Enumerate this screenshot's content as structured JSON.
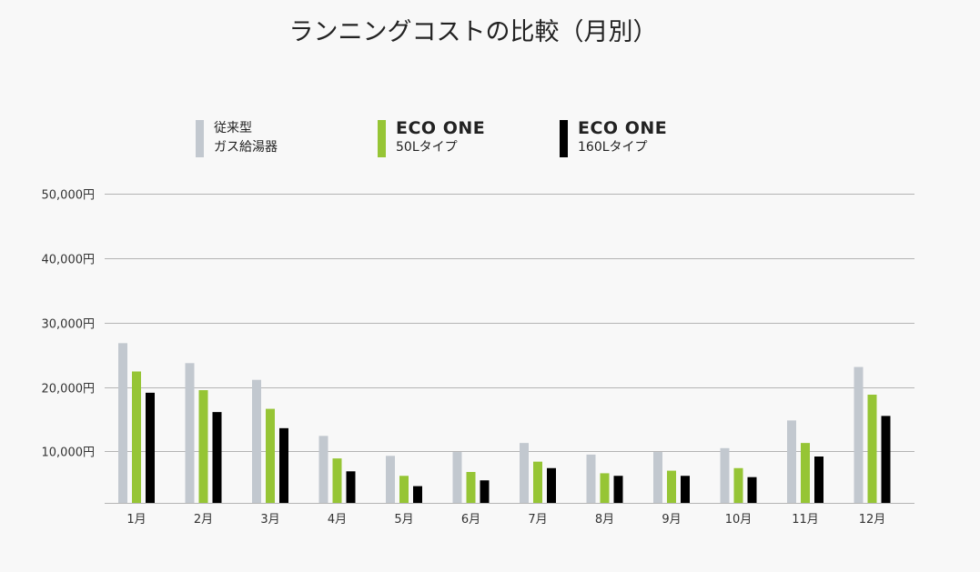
{
  "title": "ランニングコストの比較（月別）",
  "legend": [
    {
      "line1": "従来型",
      "line2": "ガス給湯器",
      "brand": false,
      "color": "#c2c8cf"
    },
    {
      "line1": "ECO ONE",
      "line2": "50Lタイプ",
      "brand": true,
      "color": "#96c535"
    },
    {
      "line1": "ECO ONE",
      "line2": "160Lタイプ",
      "brand": true,
      "color": "#000000"
    }
  ],
  "chart_data": {
    "type": "bar",
    "title": "ランニングコストの比較（月別）",
    "categories": [
      "1月",
      "2月",
      "3月",
      "4月",
      "5月",
      "6月",
      "7月",
      "8月",
      "9月",
      "10月",
      "11月",
      "12月"
    ],
    "series": [
      {
        "name": "従来型 ガス給湯器",
        "color": "#c2c8cf",
        "values": [
          26800,
          23700,
          21100,
          12400,
          9300,
          9900,
          11300,
          9500,
          9900,
          10500,
          14800,
          23100
        ]
      },
      {
        "name": "ECO ONE 50Lタイプ",
        "color": "#96c535",
        "values": [
          22400,
          19500,
          16600,
          8900,
          6200,
          6800,
          8400,
          6600,
          7000,
          7400,
          11300,
          18800
        ]
      },
      {
        "name": "ECO ONE 160Lタイプ",
        "color": "#000000",
        "values": [
          19100,
          16100,
          13600,
          6900,
          4600,
          5500,
          7400,
          6200,
          6200,
          6000,
          9200,
          15500
        ]
      }
    ],
    "yticks": [
      "10,000円",
      "20,000円",
      "30,000円",
      "40,000円",
      "50,000円"
    ],
    "ytick_values": [
      10000,
      20000,
      30000,
      40000,
      50000
    ],
    "ylim": [
      2000,
      50000
    ],
    "grid": true,
    "legend_position": "top"
  }
}
